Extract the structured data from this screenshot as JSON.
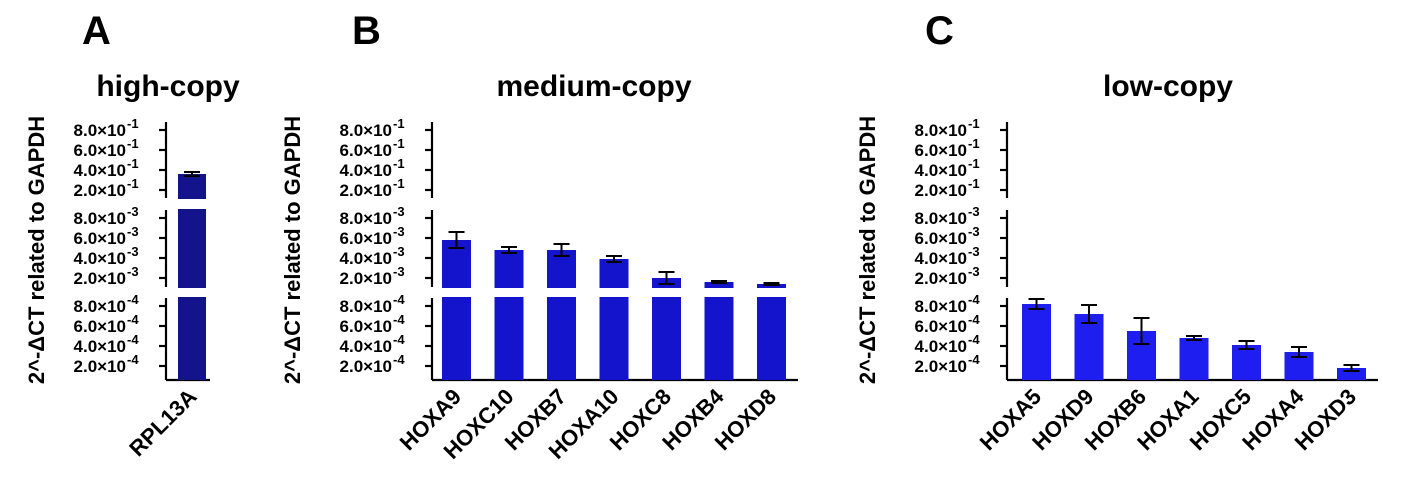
{
  "chart_data": [
    {
      "type": "bar",
      "panel": "A",
      "title": "high-copy",
      "ylabel": "2^-ΔCT related to  GAPDH",
      "y_scale": "broken axis (three segments)",
      "ytick_labels": [
        "8.0×10",
        "6.0×10",
        "4.0×10",
        "2.0×10",
        "8.0×10",
        "6.0×10",
        "4.0×10",
        "2.0×10",
        "8.0×10",
        "6.0×10",
        "4.0×10",
        "2.0×10"
      ],
      "ytick_exponents": [
        "-1",
        "-1",
        "-1",
        "-1",
        "-3",
        "-3",
        "-3",
        "-3",
        "-4",
        "-4",
        "-4",
        "-4"
      ],
      "categories": [
        "RPL13A"
      ],
      "values": [
        0.36
      ],
      "errors": [
        0.02
      ],
      "bar_color": "#13138c"
    },
    {
      "type": "bar",
      "panel": "B",
      "title": "medium-copy",
      "ylabel": "2^-ΔCT related to  GAPDH",
      "y_scale": "broken axis (three segments)",
      "ytick_labels": [
        "8.0×10",
        "6.0×10",
        "4.0×10",
        "2.0×10",
        "8.0×10",
        "6.0×10",
        "4.0×10",
        "2.0×10",
        "8.0×10",
        "6.0×10",
        "4.0×10",
        "2.0×10"
      ],
      "ytick_exponents": [
        "-1",
        "-1",
        "-1",
        "-1",
        "-3",
        "-3",
        "-3",
        "-3",
        "-4",
        "-4",
        "-4",
        "-4"
      ],
      "categories": [
        "HOXA9",
        "HOXC10",
        "HOXB7",
        "HOXA10",
        "HOXC8",
        "HOXB4",
        "HOXD8"
      ],
      "values": [
        0.0058,
        0.0048,
        0.0048,
        0.0039,
        0.002,
        0.0016,
        0.0014
      ],
      "errors": [
        0.0008,
        0.0003,
        0.0006,
        0.0003,
        0.0006,
        0.0001,
        0.0001
      ],
      "bar_color": "#1414cc"
    },
    {
      "type": "bar",
      "panel": "C",
      "title": "low-copy",
      "ylabel": "2^-ΔCT related to  GAPDH",
      "y_scale": "broken axis (three segments)",
      "ytick_labels": [
        "8.0×10",
        "6.0×10",
        "4.0×10",
        "2.0×10",
        "8.0×10",
        "6.0×10",
        "4.0×10",
        "2.0×10",
        "8.0×10",
        "6.0×10",
        "4.0×10",
        "2.0×10"
      ],
      "ytick_exponents": [
        "-1",
        "-1",
        "-1",
        "-1",
        "-3",
        "-3",
        "-3",
        "-3",
        "-4",
        "-4",
        "-4",
        "-4"
      ],
      "categories": [
        "HOXA5",
        "HOXD9",
        "HOXB6",
        "HOXA1",
        "HOXC5",
        "HOXA4",
        "HOXD3"
      ],
      "values": [
        0.00082,
        0.00072,
        0.00055,
        0.00048,
        0.00041,
        0.00034,
        0.00018
      ],
      "errors": [
        5e-05,
        9e-05,
        0.00013,
        2e-05,
        4e-05,
        5e-05,
        3e-05
      ],
      "bar_color": "#1e1ef0"
    }
  ]
}
